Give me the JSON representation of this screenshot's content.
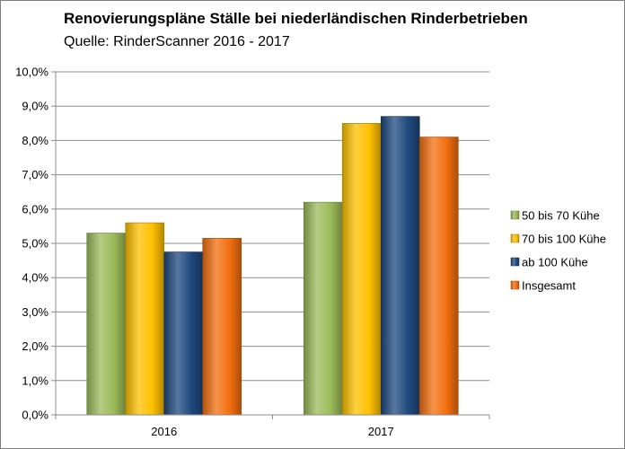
{
  "chart_data": {
    "type": "bar",
    "title": "Renovierungspläne Ställe bei niederländischen Rinderbetrieben",
    "subtitle": "Quelle: RinderScanner  2016 - 2017",
    "categories": [
      "2016",
      "2017"
    ],
    "series": [
      {
        "name": "50 bis 70 Kühe",
        "values": [
          5.3,
          6.2
        ],
        "color": "#9bbb59"
      },
      {
        "name": "70 bis 100 Kühe",
        "values": [
          5.6,
          8.5
        ],
        "color": "#ffc000"
      },
      {
        "name": "ab 100 Kühe",
        "values": [
          4.75,
          8.7
        ],
        "color": "#1f497d"
      },
      {
        "name": "Insgesamt",
        "values": [
          5.15,
          8.1
        ],
        "color": "#f36f0f"
      }
    ],
    "ylim": [
      0,
      10
    ],
    "ytick_step": 1,
    "ytick_labels": [
      "0,0%",
      "1,0%",
      "2,0%",
      "3,0%",
      "4,0%",
      "5,0%",
      "6,0%",
      "7,0%",
      "8,0%",
      "9,0%",
      "10,0%"
    ],
    "grid": true,
    "legend_position": "right"
  }
}
